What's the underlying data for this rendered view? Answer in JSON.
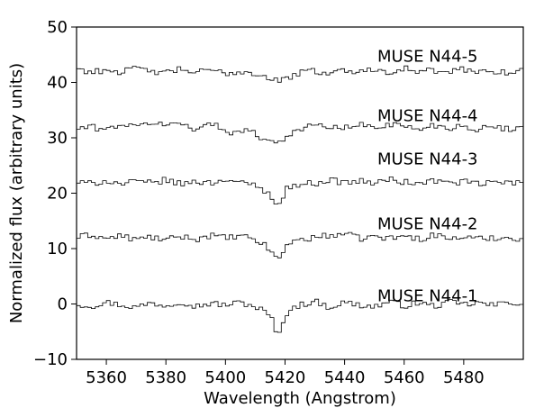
{
  "chart_data": {
    "type": "line",
    "step": true,
    "xlabel": "Wavelength (Angstrom)",
    "ylabel": "Normalized flux (arbitrary units)",
    "xlim": [
      5350,
      5500
    ],
    "ylim": [
      -10,
      50
    ],
    "x_ticks": [
      5360,
      5380,
      5400,
      5420,
      5440,
      5460,
      5480
    ],
    "y_ticks": [
      -10,
      0,
      10,
      20,
      30,
      40,
      50
    ],
    "x_tick_labels": [
      "5360",
      "5380",
      "5400",
      "5420",
      "5440",
      "5460",
      "5480"
    ],
    "y_tick_labels": [
      "−10",
      "0",
      "10",
      "20",
      "30",
      "40",
      "50"
    ],
    "line_color": "#000000",
    "grid": false,
    "series": [
      {
        "name": "MUSE N44-1",
        "label_x": 5451,
        "label_y": 1.5,
        "baseline": 0,
        "x": [
          5350,
          5355,
          5360,
          5365,
          5370,
          5375,
          5380,
          5385,
          5390,
          5395,
          5400,
          5405,
          5410,
          5412,
          5414,
          5416,
          5417,
          5418,
          5419,
          5420,
          5422,
          5425,
          5430,
          5435,
          5440,
          5445,
          5450,
          5455,
          5460,
          5465,
          5470,
          5475,
          5480,
          5485,
          5490,
          5495,
          5500
        ],
        "y": [
          0.0,
          -0.4,
          0.3,
          -0.2,
          -0.6,
          0.2,
          -0.3,
          0.5,
          -0.4,
          0.1,
          -0.2,
          0.3,
          -0.5,
          -1.0,
          -1.8,
          -3.0,
          -5.0,
          -5.8,
          -4.2,
          -2.0,
          -0.8,
          -0.2,
          0.5,
          -0.6,
          0.3,
          -0.2,
          -0.5,
          0.4,
          -0.3,
          0.2,
          -0.4,
          0.3,
          -0.1,
          0.2,
          -0.3,
          0.4,
          0.0
        ]
      },
      {
        "name": "MUSE N44-2",
        "label_x": 5451,
        "label_y": 14.5,
        "baseline": 12,
        "x": [
          5350,
          5355,
          5360,
          5365,
          5370,
          5375,
          5380,
          5385,
          5390,
          5395,
          5400,
          5405,
          5410,
          5412,
          5414,
          5416,
          5417,
          5418,
          5419,
          5420,
          5422,
          5425,
          5430,
          5435,
          5440,
          5445,
          5450,
          5455,
          5460,
          5465,
          5470,
          5475,
          5480,
          5485,
          5490,
          5495,
          5500
        ],
        "y": [
          12.0,
          12.5,
          11.8,
          12.3,
          11.6,
          12.1,
          11.5,
          12.2,
          11.7,
          12.4,
          11.9,
          12.2,
          11.6,
          11.0,
          10.2,
          9.3,
          8.3,
          7.9,
          8.8,
          10.5,
          11.2,
          11.6,
          12.0,
          12.4,
          12.7,
          11.8,
          12.2,
          11.8,
          12.3,
          11.7,
          12.5,
          11.8,
          12.1,
          11.7,
          12.0,
          11.9,
          11.8
        ]
      },
      {
        "name": "MUSE N44-3",
        "label_x": 5451,
        "label_y": 26.2,
        "baseline": 22,
        "x": [
          5350,
          5355,
          5360,
          5365,
          5370,
          5375,
          5380,
          5385,
          5390,
          5395,
          5400,
          5405,
          5408,
          5410,
          5412,
          5414,
          5416,
          5417,
          5418,
          5419,
          5420,
          5422,
          5425,
          5430,
          5435,
          5440,
          5445,
          5450,
          5455,
          5460,
          5465,
          5470,
          5475,
          5480,
          5485,
          5490,
          5495,
          5500
        ],
        "y": [
          22.0,
          21.7,
          22.3,
          21.6,
          22.1,
          21.8,
          22.4,
          21.6,
          22.2,
          21.8,
          22.6,
          21.9,
          21.4,
          21.6,
          20.8,
          20.0,
          19.3,
          18.4,
          17.9,
          18.7,
          20.6,
          21.2,
          21.6,
          21.8,
          22.4,
          21.9,
          22.2,
          21.8,
          22.5,
          22.0,
          21.7,
          22.3,
          21.8,
          22.1,
          21.6,
          22.0,
          21.9,
          21.8
        ]
      },
      {
        "name": "MUSE N44-4",
        "label_x": 5451,
        "label_y": 34.0,
        "baseline": 32,
        "x": [
          5350,
          5355,
          5360,
          5365,
          5370,
          5375,
          5380,
          5385,
          5390,
          5395,
          5398,
          5400,
          5403,
          5406,
          5409,
          5411,
          5413,
          5415,
          5417,
          5419,
          5421,
          5425,
          5430,
          5435,
          5440,
          5445,
          5450,
          5455,
          5460,
          5465,
          5470,
          5475,
          5480,
          5485,
          5490,
          5495,
          5500
        ],
        "y": [
          31.6,
          32.0,
          31.4,
          32.6,
          31.8,
          32.9,
          32.2,
          32.7,
          31.6,
          32.5,
          31.9,
          31.5,
          30.8,
          31.6,
          30.9,
          30.4,
          29.9,
          29.5,
          29.1,
          29.7,
          30.6,
          31.5,
          32.3,
          32.0,
          31.7,
          32.4,
          31.8,
          32.6,
          32.0,
          31.6,
          32.3,
          31.8,
          32.2,
          31.5,
          32.0,
          31.6,
          31.8
        ]
      },
      {
        "name": "MUSE N44-5",
        "label_x": 5451,
        "label_y": 44.7,
        "baseline": 42,
        "x": [
          5350,
          5355,
          5360,
          5365,
          5370,
          5375,
          5380,
          5385,
          5390,
          5395,
          5400,
          5405,
          5410,
          5413,
          5416,
          5418,
          5420,
          5422,
          5425,
          5430,
          5435,
          5440,
          5445,
          5450,
          5455,
          5460,
          5465,
          5470,
          5475,
          5480,
          5485,
          5490,
          5495,
          5500
        ],
        "y": [
          42.6,
          41.8,
          42.3,
          41.9,
          42.5,
          42.0,
          41.7,
          42.4,
          41.8,
          42.2,
          41.6,
          42.0,
          41.5,
          41.2,
          40.6,
          40.2,
          40.5,
          41.1,
          41.7,
          42.1,
          41.6,
          42.3,
          41.8,
          42.5,
          41.9,
          42.6,
          41.8,
          42.2,
          41.7,
          42.4,
          41.9,
          42.1,
          41.8,
          42.2
        ]
      }
    ]
  }
}
